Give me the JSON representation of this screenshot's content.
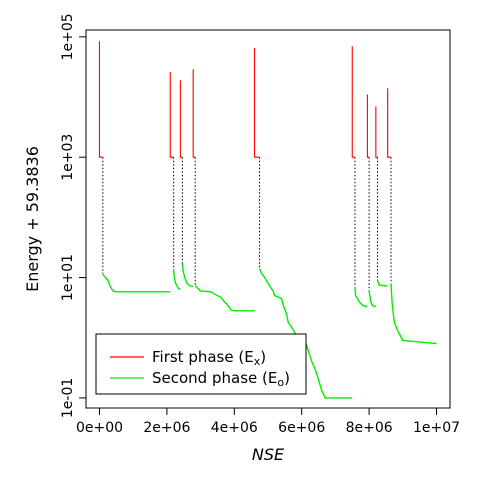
{
  "chart_data": {
    "type": "line",
    "xlabel": "NSE",
    "ylabel": "Energy + 59.3836",
    "y_scale": "log",
    "xlim": [
      -400000,
      10400000
    ],
    "ylim": [
      0.068,
      130000
    ],
    "x_ticks": [
      0,
      2000000,
      4000000,
      6000000,
      8000000,
      10000000
    ],
    "x_tick_labels": [
      "0e+00",
      "2e+06",
      "4e+06",
      "6e+06",
      "8e+06",
      "1e+07"
    ],
    "y_ticks": [
      0.1,
      10,
      1000,
      100000
    ],
    "y_tick_labels": [
      "1e-01",
      "1e+01",
      "1e+03",
      "1e+05"
    ],
    "legend": {
      "position": "bottom-left",
      "entries": [
        {
          "label": "First phase",
          "sub": "x",
          "color": "#ff0000"
        },
        {
          "label": "Second phase",
          "sub": "o",
          "color": "#00ee00"
        }
      ]
    },
    "grid": false,
    "series": [
      {
        "name": "First phase (Ex)",
        "color": "#ff0000",
        "segments": [
          {
            "x_start": 0,
            "x_end": 100000,
            "peak": 85000,
            "plateau": 1000
          },
          {
            "x_start": 2100000,
            "x_end": 2200000,
            "peak": 26000,
            "plateau": 1000
          },
          {
            "x_start": 2400000,
            "x_end": 2460000,
            "peak": 19000,
            "plateau": 1000
          },
          {
            "x_start": 2780000,
            "x_end": 2840000,
            "peak": 29000,
            "plateau": 1000
          },
          {
            "x_start": 4600000,
            "x_end": 4750000,
            "peak": 65000,
            "plateau": 1000
          },
          {
            "x_start": 7500000,
            "x_end": 7580000,
            "peak": 70000,
            "plateau": 1000
          },
          {
            "x_start": 7950000,
            "x_end": 8000000,
            "peak": 11000,
            "plateau": 1000
          },
          {
            "x_start": 8200000,
            "x_end": 8250000,
            "peak": 7000,
            "plateau": 1000
          },
          {
            "x_start": 8550000,
            "x_end": 8650000,
            "peak": 14000,
            "plateau": 1000
          }
        ]
      },
      {
        "name": "Second phase (Eo)",
        "color": "#00ee00",
        "segments": [
          {
            "points": [
              [
                100000,
                11
              ],
              [
                150000,
                10.5
              ],
              [
                250000,
                9
              ],
              [
                300000,
                7.5
              ],
              [
                400000,
                6
              ],
              [
                500000,
                5.8
              ],
              [
                2100000,
                5.8
              ]
            ]
          },
          {
            "points": [
              [
                2200000,
                14
              ],
              [
                2220000,
                10
              ],
              [
                2260000,
                8
              ],
              [
                2350000,
                6.5
              ],
              [
                2400000,
                6.5
              ]
            ]
          },
          {
            "points": [
              [
                2460000,
                17
              ],
              [
                2480000,
                13
              ],
              [
                2530000,
                10
              ],
              [
                2600000,
                8
              ],
              [
                2700000,
                7.2
              ],
              [
                2780000,
                7.2
              ]
            ]
          },
          {
            "points": [
              [
                2840000,
                7.3
              ],
              [
                3000000,
                6
              ],
              [
                3300000,
                5.8
              ],
              [
                3500000,
                5
              ],
              [
                3600000,
                4.7
              ],
              [
                3700000,
                4
              ],
              [
                3800000,
                3.5
              ],
              [
                3900000,
                2.9
              ],
              [
                4000000,
                2.8
              ],
              [
                4600000,
                2.8
              ]
            ]
          },
          {
            "points": [
              [
                4750000,
                14
              ],
              [
                4800000,
                12
              ],
              [
                4900000,
                10
              ],
              [
                5000000,
                8
              ],
              [
                5150000,
                6
              ],
              [
                5200000,
                5
              ],
              [
                5400000,
                4.5
              ],
              [
                5450000,
                3.5
              ],
              [
                5550000,
                2.5
              ],
              [
                5600000,
                1.8
              ],
              [
                5700000,
                1.5
              ],
              [
                5800000,
                1.2
              ],
              [
                5900000,
                1.0
              ],
              [
                6100000,
                0.9
              ],
              [
                6200000,
                0.6
              ],
              [
                6300000,
                0.4
              ],
              [
                6400000,
                0.3
              ],
              [
                6500000,
                0.2
              ],
              [
                6600000,
                0.13
              ],
              [
                6700000,
                0.1
              ],
              [
                7500000,
                0.1
              ]
            ]
          },
          {
            "points": [
              [
                7580000,
                7
              ],
              [
                7600000,
                5
              ],
              [
                7650000,
                4.5
              ],
              [
                7700000,
                4
              ],
              [
                7800000,
                3.5
              ],
              [
                7900000,
                3.3
              ],
              [
                7950000,
                3.3
              ]
            ]
          },
          {
            "points": [
              [
                8000000,
                6
              ],
              [
                8050000,
                4
              ],
              [
                8100000,
                3.4
              ],
              [
                8200000,
                3.3
              ]
            ]
          },
          {
            "points": [
              [
                8250000,
                9
              ],
              [
                8300000,
                7.5
              ],
              [
                8450000,
                7.3
              ],
              [
                8550000,
                7.3
              ]
            ]
          },
          {
            "points": [
              [
                8650000,
                8
              ],
              [
                8680000,
                4
              ],
              [
                8700000,
                3
              ],
              [
                8750000,
                1.8
              ],
              [
                8850000,
                1.3
              ],
              [
                9000000,
                0.9
              ],
              [
                10000000,
                0.8
              ]
            ]
          }
        ]
      }
    ],
    "connectors": [
      100000,
      2200000,
      2460000,
      2840000,
      4750000,
      7580000,
      8000000,
      8250000,
      8650000
    ]
  }
}
